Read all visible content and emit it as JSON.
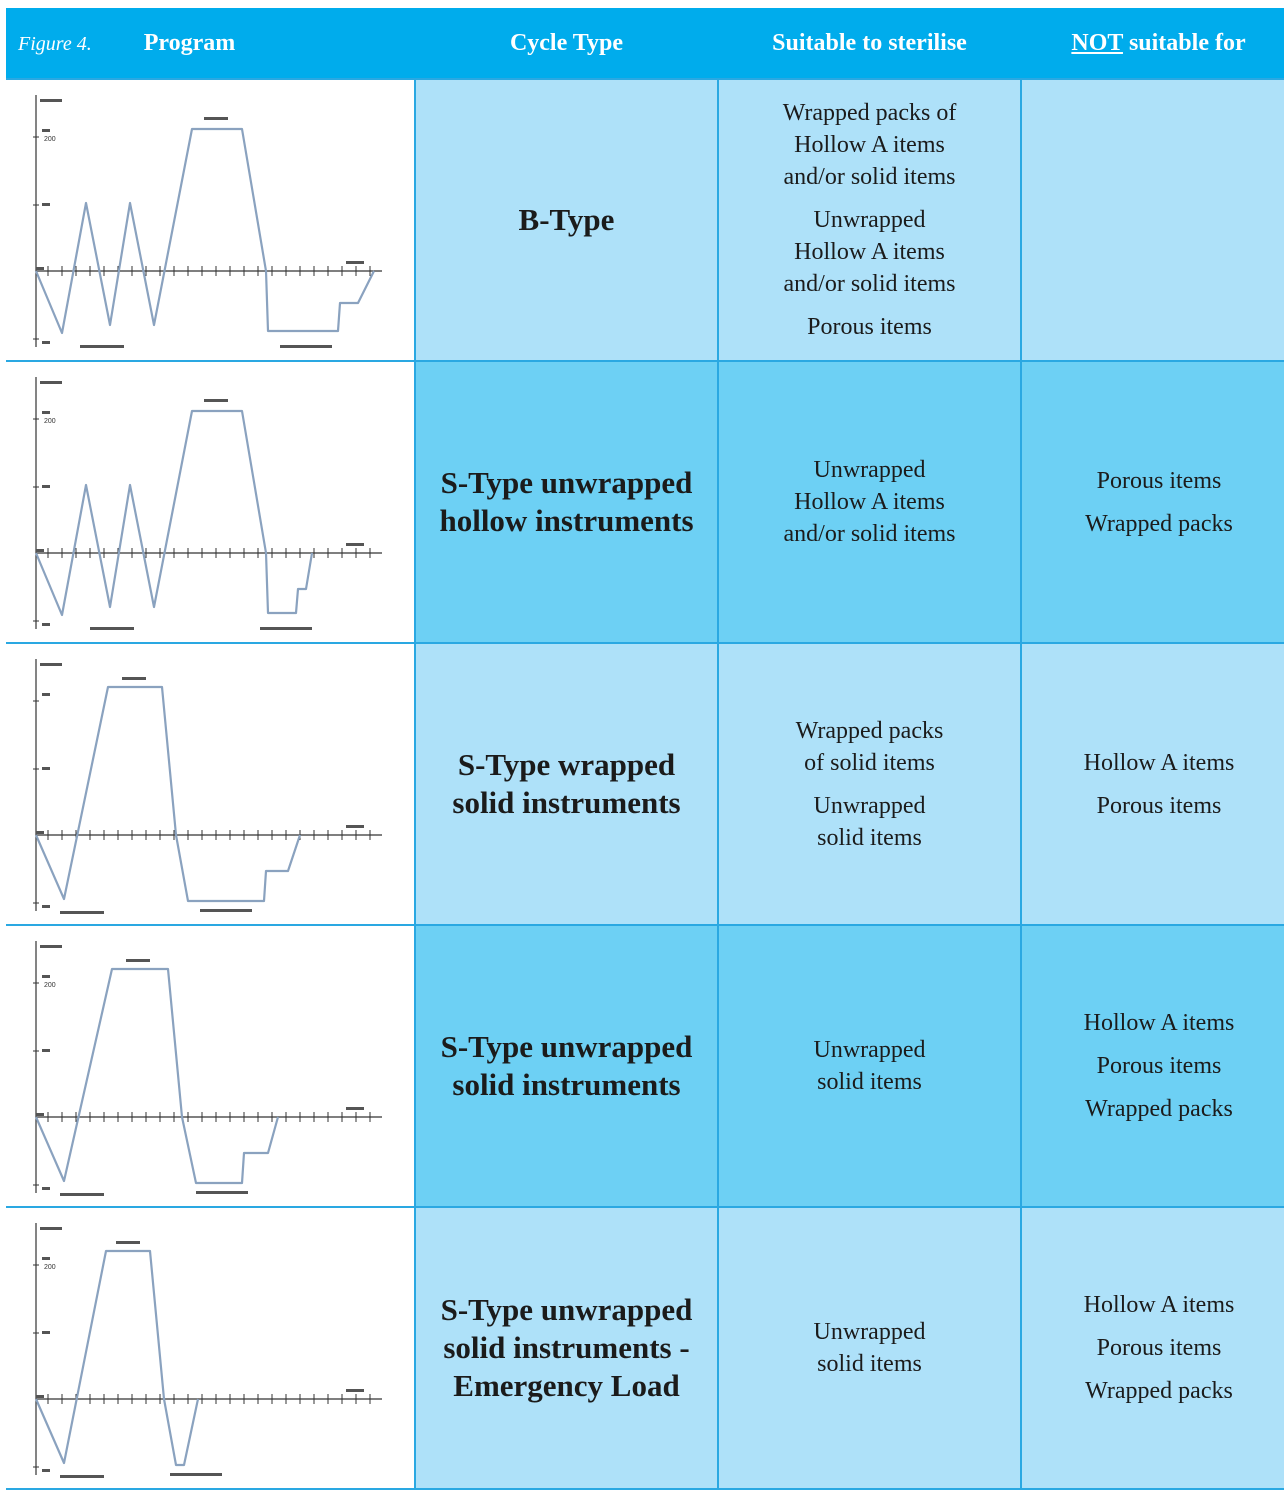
{
  "figure_label": "Figure 4.",
  "headers": {
    "program": "Program",
    "cycle_type": "Cycle Type",
    "suitable": "Suitable to sterilise",
    "not_word": "NOT",
    "not_rest": " suitable for"
  },
  "colors": {
    "header_bg": "#00acec",
    "row_light": "#aee1f9",
    "row_dark": "#6dd0f4",
    "graph_line": "#8aa2bf"
  },
  "rows": [
    {
      "cycle": "B-Type",
      "suitable": [
        "Wrapped packs of\nHollow A items\nand/or solid items",
        "Unwrapped\nHollow A items\nand/or solid items",
        "Porous items"
      ],
      "not_suitable": [],
      "graph": {
        "profile": "three pre-vacuum pulses, plateau, vacuum drying",
        "tick_label": "200"
      }
    },
    {
      "cycle": "S-Type unwrapped\nhollow instruments",
      "suitable": [
        "Unwrapped\nHollow A items\nand/or solid items"
      ],
      "not_suitable": [
        "Porous items",
        "Wrapped packs"
      ],
      "graph": {
        "profile": "three pre-vacuum pulses, plateau, vacuum drying",
        "tick_label": "200"
      }
    },
    {
      "cycle": "S-Type wrapped\nsolid instruments",
      "suitable": [
        "Wrapped packs\nof solid items",
        "Unwrapped\nsolid items"
      ],
      "not_suitable": [
        "Hollow A items",
        "Porous items"
      ],
      "graph": {
        "profile": "single pre-vacuum, plateau, vacuum drying",
        "tick_label": ""
      }
    },
    {
      "cycle": "S-Type unwrapped\nsolid instruments",
      "suitable": [
        "Unwrapped\nsolid items"
      ],
      "not_suitable": [
        "Hollow A items",
        "Porous items",
        "Wrapped packs"
      ],
      "graph": {
        "profile": "single pre-vacuum, plateau, vacuum drying",
        "tick_label": "200"
      }
    },
    {
      "cycle": "S-Type unwrapped\nsolid instruments -\nEmergency Load",
      "suitable": [
        "Unwrapped\nsolid items"
      ],
      "not_suitable": [
        "Hollow A items",
        "Porous items",
        "Wrapped packs"
      ],
      "graph": {
        "profile": "single pre-vacuum, plateau, short drying",
        "tick_label": "200"
      }
    }
  ]
}
